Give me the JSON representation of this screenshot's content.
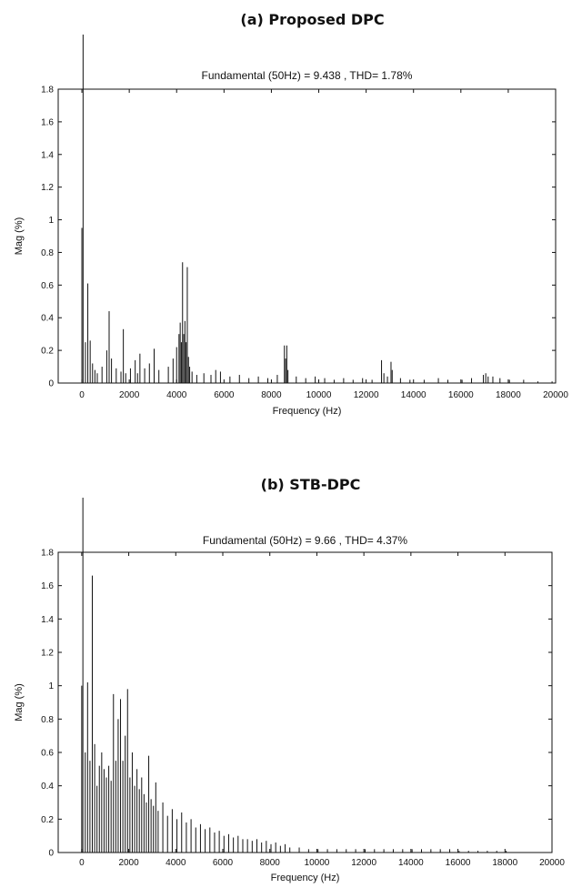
{
  "chart_data": [
    {
      "type": "bar",
      "title": "(a) Proposed DPC",
      "subtitle": "Fundamental (50Hz) = 9.438 , THD= 1.78%",
      "xlabel": "Frequency (Hz)",
      "ylabel": "Mag (%)",
      "xlim": [
        -1000,
        20000
      ],
      "ylim": [
        0,
        1.8
      ],
      "xticks": [
        "0",
        "2000",
        "4000",
        "6000",
        "8000",
        "10000",
        "12000",
        "14000",
        "16000",
        "18000",
        "20000"
      ],
      "yticks": [
        "0",
        "0.2",
        "0.4",
        "0.6",
        "0.8",
        "1",
        "1.2",
        "1.4",
        "1.6",
        "1.8"
      ],
      "fundamental_hz": 50,
      "fundamental_value": 9.438,
      "thd_percent": 1.78,
      "grid": false,
      "x": [
        0,
        50,
        150,
        250,
        350,
        450,
        550,
        650,
        850,
        1050,
        1150,
        1250,
        1450,
        1650,
        1750,
        1850,
        2050,
        2250,
        2350,
        2450,
        2650,
        2850,
        3050,
        3250,
        3650,
        3850,
        4000,
        4100,
        4150,
        4200,
        4250,
        4300,
        4350,
        4400,
        4450,
        4500,
        4550,
        4650,
        4850,
        5150,
        5450,
        5650,
        5850,
        6250,
        6650,
        7050,
        7450,
        7850,
        8250,
        8550,
        8600,
        8650,
        8700,
        9050,
        9450,
        9850,
        10250,
        10650,
        11050,
        11450,
        11850,
        12250,
        12650,
        12750,
        12900,
        13050,
        13100,
        13450,
        13850,
        14450,
        15050,
        15450,
        16050,
        16450,
        16950,
        17050,
        17150,
        17350,
        17650,
        18050,
        18650,
        19250,
        19850
      ],
      "values": [
        0.95,
        1.8,
        0.25,
        0.61,
        0.26,
        0.12,
        0.08,
        0.06,
        0.1,
        0.2,
        0.44,
        0.15,
        0.09,
        0.07,
        0.33,
        0.06,
        0.09,
        0.14,
        0.06,
        0.18,
        0.09,
        0.12,
        0.21,
        0.08,
        0.1,
        0.15,
        0.22,
        0.3,
        0.37,
        0.25,
        0.74,
        0.3,
        0.38,
        0.25,
        0.71,
        0.16,
        0.1,
        0.07,
        0.05,
        0.06,
        0.05,
        0.08,
        0.07,
        0.04,
        0.05,
        0.03,
        0.04,
        0.03,
        0.05,
        0.23,
        0.15,
        0.23,
        0.08,
        0.04,
        0.03,
        0.04,
        0.03,
        0.02,
        0.03,
        0.02,
        0.03,
        0.02,
        0.14,
        0.06,
        0.04,
        0.13,
        0.08,
        0.03,
        0.02,
        0.02,
        0.03,
        0.02,
        0.02,
        0.03,
        0.05,
        0.06,
        0.04,
        0.04,
        0.03,
        0.02,
        0.02,
        0.01,
        0.01
      ]
    },
    {
      "type": "bar",
      "title": "(b) STB-DPC",
      "subtitle": "Fundamental (50Hz) = 9.66 , THD= 4.37%",
      "xlabel": "Frequency (Hz)",
      "ylabel": "Mag (%)",
      "xlim": [
        -1000,
        20000
      ],
      "ylim": [
        0,
        1.8
      ],
      "xticks": [
        "0",
        "2000",
        "4000",
        "6000",
        "8000",
        "10000",
        "12000",
        "14000",
        "16000",
        "18000",
        "20000"
      ],
      "yticks": [
        "0",
        "0.2",
        "0.4",
        "0.6",
        "0.8",
        "1",
        "1.2",
        "1.4",
        "1.6",
        "1.8"
      ],
      "fundamental_hz": 50,
      "fundamental_value": 9.66,
      "thd_percent": 4.37,
      "grid": false,
      "x": [
        0,
        50,
        150,
        250,
        350,
        450,
        550,
        650,
        750,
        850,
        950,
        1050,
        1150,
        1250,
        1350,
        1450,
        1550,
        1650,
        1750,
        1850,
        1950,
        2050,
        2150,
        2250,
        2350,
        2450,
        2550,
        2650,
        2750,
        2850,
        2950,
        3050,
        3150,
        3250,
        3450,
        3650,
        3850,
        4050,
        4250,
        4450,
        4650,
        4850,
        5050,
        5250,
        5450,
        5650,
        5850,
        6050,
        6250,
        6450,
        6650,
        6850,
        7050,
        7250,
        7450,
        7650,
        7850,
        8050,
        8250,
        8450,
        8650,
        8850,
        9250,
        9650,
        10050,
        10450,
        10850,
        11250,
        11650,
        12050,
        12450,
        12850,
        13250,
        13650,
        14050,
        14450,
        14850,
        15250,
        15650,
        16050,
        16450,
        16850,
        17250,
        17650,
        18050
      ],
      "values": [
        1.0,
        1.8,
        0.6,
        1.02,
        0.55,
        1.66,
        0.65,
        0.4,
        0.52,
        0.6,
        0.5,
        0.45,
        0.52,
        0.43,
        0.95,
        0.55,
        0.8,
        0.92,
        0.55,
        0.7,
        0.98,
        0.45,
        0.6,
        0.4,
        0.5,
        0.38,
        0.45,
        0.35,
        0.3,
        0.58,
        0.32,
        0.28,
        0.42,
        0.25,
        0.3,
        0.22,
        0.26,
        0.2,
        0.24,
        0.18,
        0.2,
        0.15,
        0.17,
        0.14,
        0.15,
        0.12,
        0.13,
        0.1,
        0.11,
        0.09,
        0.1,
        0.08,
        0.08,
        0.07,
        0.08,
        0.06,
        0.07,
        0.05,
        0.06,
        0.04,
        0.05,
        0.03,
        0.03,
        0.02,
        0.02,
        0.02,
        0.02,
        0.02,
        0.02,
        0.02,
        0.02,
        0.02,
        0.02,
        0.02,
        0.02,
        0.02,
        0.02,
        0.02,
        0.02,
        0.01,
        0.01,
        0.01,
        0.01,
        0.01,
        0.01
      ]
    }
  ]
}
